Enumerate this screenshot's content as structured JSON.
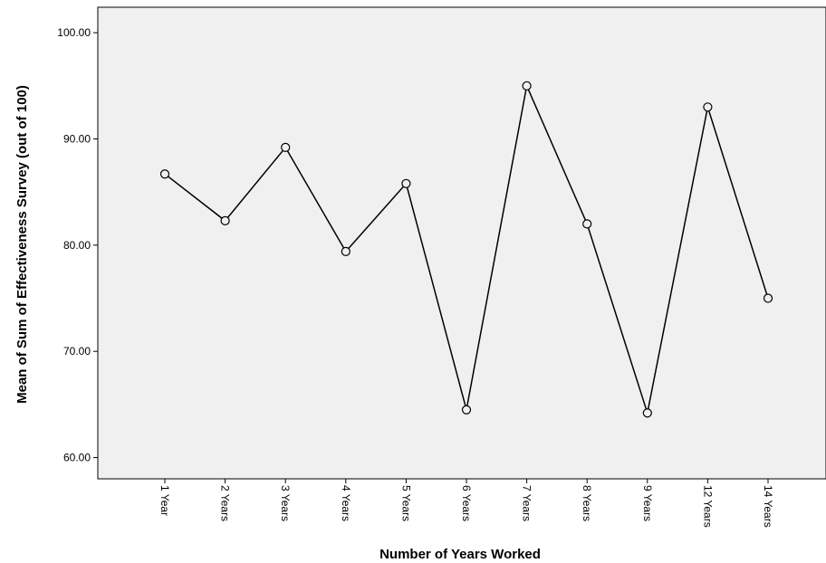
{
  "chart_data": {
    "type": "line",
    "title": "",
    "xlabel": "Number of Years Worked",
    "ylabel": "Mean of Sum of Effectiveness Survey (out of 100)",
    "categories": [
      "1 Year",
      "2 Years",
      "3 Years",
      "4 Years",
      "5 Years",
      "6 Years",
      "7 Years",
      "8 Years",
      "9 Years",
      "12 Years",
      "14 Years"
    ],
    "series": [
      {
        "values": [
          86.7,
          82.3,
          89.2,
          79.4,
          85.8,
          64.5,
          95.0,
          82.0,
          64.2,
          93.0,
          75.0
        ]
      }
    ],
    "ylim": [
      58.0,
      102.4
    ],
    "yticks": [
      60,
      70,
      80,
      90,
      100
    ],
    "ytick_labels": [
      "60.00",
      "70.00",
      "80.00",
      "90.00",
      "100.00"
    ],
    "grid": false,
    "legend": "none",
    "marker": "circle",
    "colors": {
      "plot_background": "#f0f0f0",
      "line": "#000000",
      "marker_fill": "#f0f0f0"
    }
  }
}
